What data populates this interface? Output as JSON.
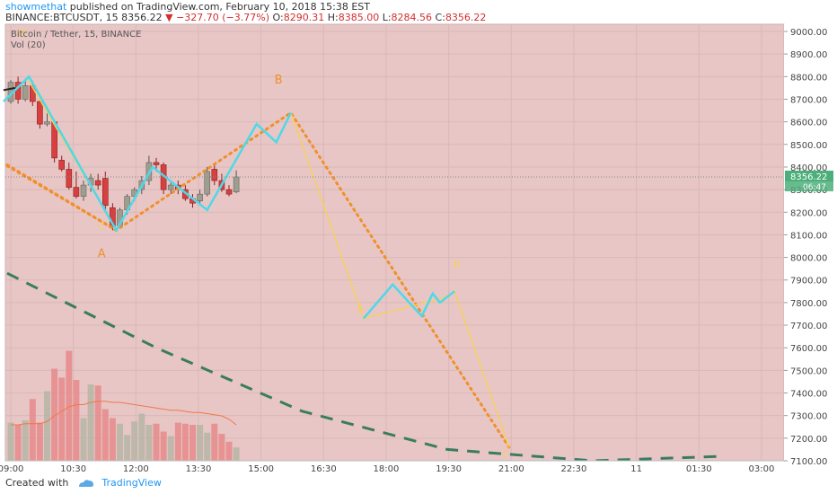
{
  "header": {
    "user": "showmethat",
    "published_text": "published on TradingView.com, February 10, 2018 15:38 EST",
    "symbol": "BINANCE:BTCUSDT, 15",
    "last": "8356.22",
    "change": "−327.70 (−3.77%)",
    "o_label": "O:",
    "o_value": "8290.31",
    "h_label": "H:",
    "h_value": "8385.00",
    "l_label": "L:",
    "l_value": "8284.56",
    "c_label": "C:",
    "c_value": "8356.22"
  },
  "legend": {
    "symbol_line": "Bitcoin / Tether, 15, BINANCE",
    "volume_line": "Vol (20)"
  },
  "footer": {
    "created_with": "Created with",
    "brand": "TradingView"
  },
  "colors": {
    "up": "#9e9e8e",
    "down": "#d84040",
    "cyan": "#4dd9e8",
    "yellow": "#f5d060",
    "orange": "#f0902a",
    "green_dash": "#3a7d5e",
    "bg": "#e8c6c6",
    "price_tag": "#4caf7a"
  },
  "chart_data": {
    "type": "candlestick",
    "y_range": [
      7100,
      9000
    ],
    "y_ticks": [
      "9000.00",
      "8900.00",
      "8800.00",
      "8700.00",
      "8600.00",
      "8500.00",
      "8400.00",
      "8300.00",
      "8200.00",
      "8100.00",
      "8000.00",
      "7900.00",
      "7800.00",
      "7700.00",
      "7600.00",
      "7500.00",
      "7400.00",
      "7300.00",
      "7200.00",
      "7100.00"
    ],
    "x_ticks": [
      "09:00",
      "10:30",
      "12:00",
      "13:30",
      "15:00",
      "16:30",
      "18:00",
      "19:30",
      "21:00",
      "22:30",
      "11",
      "01:30",
      "03:00"
    ],
    "current_price_label": "8356.22",
    "countdown_label": "06:47",
    "candles": [
      {
        "t": 0,
        "o": 8690,
        "h": 8785,
        "l": 8680,
        "c": 8775
      },
      {
        "t": 1,
        "o": 8775,
        "h": 8800,
        "l": 8680,
        "c": 8700
      },
      {
        "t": 2,
        "o": 8700,
        "h": 8790,
        "l": 8690,
        "c": 8760
      },
      {
        "t": 3,
        "o": 8760,
        "h": 8780,
        "l": 8670,
        "c": 8690
      },
      {
        "t": 4,
        "o": 8690,
        "h": 8700,
        "l": 8570,
        "c": 8590
      },
      {
        "t": 5,
        "o": 8590,
        "h": 8640,
        "l": 8580,
        "c": 8600
      },
      {
        "t": 6,
        "o": 8600,
        "h": 8610,
        "l": 8420,
        "c": 8440
      },
      {
        "t": 7,
        "o": 8430,
        "h": 8450,
        "l": 8380,
        "c": 8390
      },
      {
        "t": 8,
        "o": 8390,
        "h": 8420,
        "l": 8300,
        "c": 8310
      },
      {
        "t": 9,
        "o": 8310,
        "h": 8380,
        "l": 8260,
        "c": 8270
      },
      {
        "t": 10,
        "o": 8270,
        "h": 8340,
        "l": 8250,
        "c": 8320
      },
      {
        "t": 11,
        "o": 8320,
        "h": 8370,
        "l": 8290,
        "c": 8350
      },
      {
        "t": 12,
        "o": 8340,
        "h": 8370,
        "l": 8300,
        "c": 8320
      },
      {
        "t": 13,
        "o": 8350,
        "h": 8380,
        "l": 8200,
        "c": 8230
      },
      {
        "t": 14,
        "o": 8220,
        "h": 8240,
        "l": 8120,
        "c": 8140
      },
      {
        "t": 15,
        "o": 8140,
        "h": 8220,
        "l": 8130,
        "c": 8210
      },
      {
        "t": 16,
        "o": 8210,
        "h": 8280,
        "l": 8190,
        "c": 8270
      },
      {
        "t": 17,
        "o": 8270,
        "h": 8310,
        "l": 8250,
        "c": 8300
      },
      {
        "t": 18,
        "o": 8300,
        "h": 8360,
        "l": 8280,
        "c": 8340
      },
      {
        "t": 19,
        "o": 8340,
        "h": 8450,
        "l": 8320,
        "c": 8420
      },
      {
        "t": 20,
        "o": 8420,
        "h": 8440,
        "l": 8380,
        "c": 8410
      },
      {
        "t": 21,
        "o": 8410,
        "h": 8420,
        "l": 8280,
        "c": 8300
      },
      {
        "t": 22,
        "o": 8300,
        "h": 8330,
        "l": 8280,
        "c": 8320
      },
      {
        "t": 23,
        "o": 8320,
        "h": 8340,
        "l": 8280,
        "c": 8300
      },
      {
        "t": 24,
        "o": 8300,
        "h": 8320,
        "l": 8250,
        "c": 8260
      },
      {
        "t": 25,
        "o": 8260,
        "h": 8280,
        "l": 8220,
        "c": 8240
      },
      {
        "t": 26,
        "o": 8250,
        "h": 8300,
        "l": 8230,
        "c": 8280
      },
      {
        "t": 27,
        "o": 8280,
        "h": 8400,
        "l": 8270,
        "c": 8380
      },
      {
        "t": 28,
        "o": 8390,
        "h": 8410,
        "l": 8320,
        "c": 8340
      },
      {
        "t": 29,
        "o": 8340,
        "h": 8370,
        "l": 8290,
        "c": 8300
      },
      {
        "t": 30,
        "o": 8300,
        "h": 8320,
        "l": 8270,
        "c": 8280
      },
      {
        "t": 31,
        "o": 8290,
        "h": 8385,
        "l": 8284,
        "c": 8356
      }
    ],
    "volume_relative": [
      0.34,
      0.32,
      0.36,
      0.55,
      0.34,
      0.62,
      0.82,
      0.74,
      0.98,
      0.72,
      0.38,
      0.68,
      0.67,
      0.46,
      0.38,
      0.33,
      0.23,
      0.35,
      0.42,
      0.32,
      0.33,
      0.26,
      0.22,
      0.34,
      0.33,
      0.32,
      0.32,
      0.25,
      0.33,
      0.24,
      0.17,
      0.12
    ],
    "volume_ma_relative": [
      0.32,
      0.32,
      0.33,
      0.33,
      0.33,
      0.35,
      0.4,
      0.44,
      0.48,
      0.5,
      0.5,
      0.52,
      0.53,
      0.53,
      0.52,
      0.52,
      0.51,
      0.5,
      0.49,
      0.48,
      0.47,
      0.46,
      0.45,
      0.45,
      0.44,
      0.43,
      0.43,
      0.42,
      0.41,
      0.4,
      0.37,
      0.32
    ],
    "annotations": [
      {
        "text": "c",
        "t": 12.5,
        "price": 8125,
        "color": "yellow"
      },
      {
        "text": "A",
        "t": 12.5,
        "price": 8000,
        "color": "orange"
      },
      {
        "text": "B",
        "t": 36.8,
        "price": 8770,
        "color": "orange"
      },
      {
        "text": "a",
        "t": 48.0,
        "price": 7760,
        "color": "yellow"
      },
      {
        "text": "b",
        "t": 61.3,
        "price": 7955,
        "color": "yellow"
      },
      {
        "text": "c",
        "t": 68.0,
        "price": 7115,
        "color": "yellow"
      },
      {
        "text": "w",
        "t": 1.5,
        "price": 8980,
        "color": "yellow"
      }
    ],
    "cyan_path": [
      [
        -1,
        8690
      ],
      [
        2.5,
        8800
      ],
      [
        14.5,
        8120
      ],
      [
        19.5,
        8400
      ],
      [
        27,
        8210
      ],
      [
        33.8,
        8590
      ],
      [
        36.5,
        8510
      ],
      [
        38.5,
        8640
      ]
    ],
    "cyan_path2": [
      [
        48.5,
        7730
      ],
      [
        52.5,
        7880
      ],
      [
        56.5,
        7740
      ],
      [
        58,
        7840
      ],
      [
        59,
        7800
      ],
      [
        61,
        7850
      ]
    ],
    "yellow_path": [
      [
        2.5,
        8780
      ],
      [
        14.5,
        8120
      ]
    ],
    "yellow_path2": [
      [
        38.5,
        8640
      ],
      [
        48.5,
        7730
      ],
      [
        59.5,
        7820
      ],
      [
        61,
        7850
      ],
      [
        68.5,
        7160
      ]
    ],
    "orange_dotted": [
      [
        -0.5,
        8410
      ],
      [
        14.5,
        8120
      ],
      [
        38.5,
        8640
      ],
      [
        68.5,
        7160
      ]
    ],
    "orange_dotted2": [
      [
        -0.5,
        8405
      ],
      [
        14.5,
        8120
      ]
    ],
    "green_dashed": [
      [
        -0.5,
        7930
      ],
      [
        20,
        7600
      ],
      [
        40,
        7320
      ],
      [
        60,
        7150
      ],
      [
        80,
        7100
      ],
      [
        98,
        7120
      ]
    ]
  }
}
